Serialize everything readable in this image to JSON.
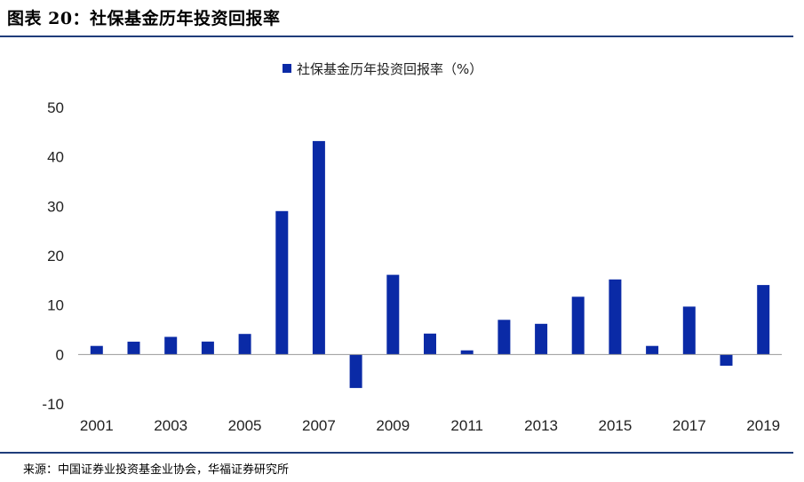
{
  "header": {
    "title": "图表 20：社保基金历年投资回报率"
  },
  "footer": {
    "source": "来源：中国证券业投资基金业协会，华福证券研究所"
  },
  "colors": {
    "bar": "#0a2aa6",
    "rule": "#1f3d7a",
    "axis": "#9a9a9a"
  },
  "chart_data": {
    "type": "bar",
    "categories": [
      "2001",
      "2002",
      "2003",
      "2004",
      "2005",
      "2006",
      "2007",
      "2008",
      "2009",
      "2010",
      "2011",
      "2012",
      "2013",
      "2014",
      "2015",
      "2016",
      "2017",
      "2018",
      "2019"
    ],
    "series": [
      {
        "name": "社保基金历年投资回报率（%）",
        "values": [
          1.73,
          2.59,
          3.56,
          2.61,
          4.16,
          29.01,
          43.19,
          -6.79,
          16.12,
          4.23,
          0.84,
          7.01,
          6.2,
          11.69,
          15.19,
          1.73,
          9.68,
          -2.28,
          14.06
        ]
      }
    ],
    "x_tick_labels": [
      "2001",
      "",
      "2003",
      "",
      "2005",
      "",
      "2007",
      "",
      "2009",
      "",
      "2011",
      "",
      "2013",
      "",
      "2015",
      "",
      "2017",
      "",
      "2019"
    ],
    "ylim": [
      -10,
      50
    ],
    "yticks": [
      -10,
      0,
      10,
      20,
      30,
      40,
      50
    ],
    "legend_position": "top-center",
    "grid": false
  }
}
